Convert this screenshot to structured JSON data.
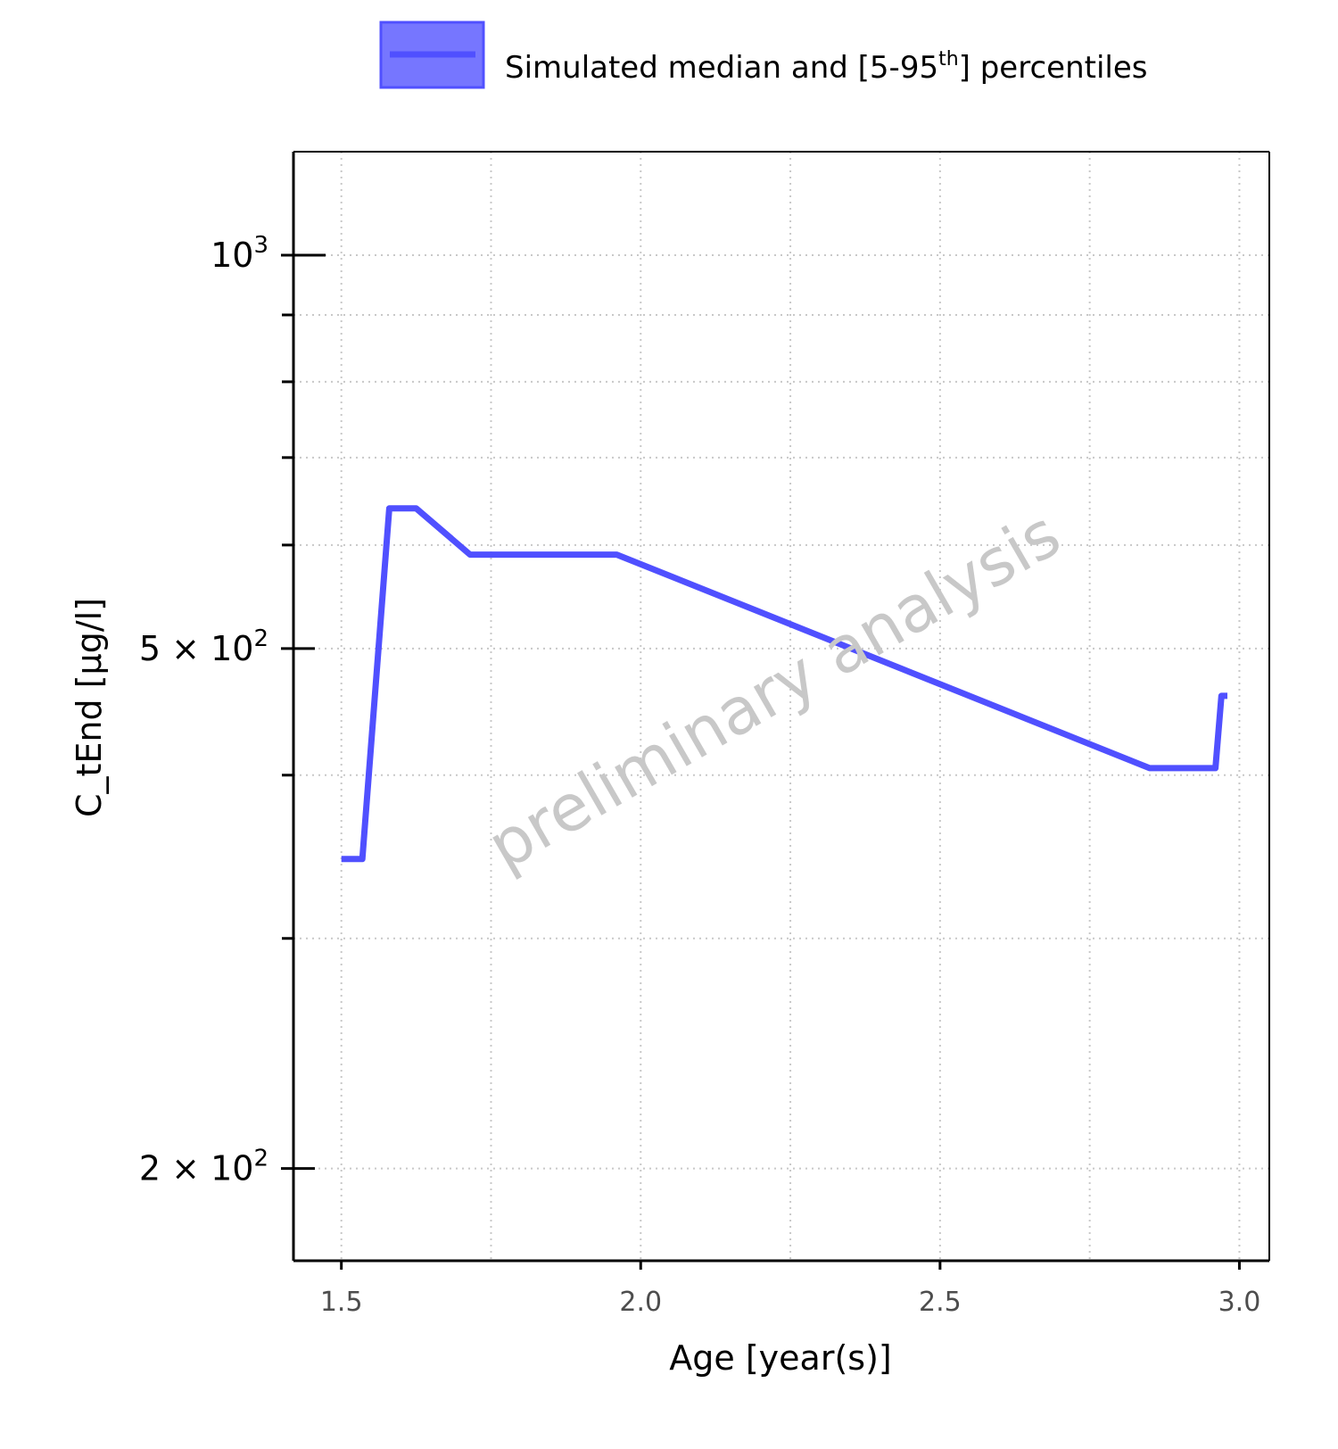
{
  "chart_data": {
    "type": "line",
    "legend": {
      "label_main": "Simulated median and [5-95",
      "label_sup": "th",
      "label_end": "] percentiles",
      "placement": "top"
    },
    "xlabel": "Age [year(s)]",
    "ylabel": "C_tEnd [µg/l]",
    "watermark": "preliminary analysis",
    "x_scale": "linear",
    "y_scale": "log",
    "xlim": [
      1.42,
      3.05
    ],
    "ylim": [
      170,
      1200
    ],
    "grid": true,
    "x_ticks": [
      {
        "value": 1.5,
        "label": "1.5"
      },
      {
        "value": 2.0,
        "label": "2.0"
      },
      {
        "value": 2.5,
        "label": "2.5"
      },
      {
        "value": 3.0,
        "label": "3.0"
      }
    ],
    "x_minor_grid": [
      1.75,
      2.25,
      2.75
    ],
    "y_ticks": [
      {
        "value": 200,
        "mantissa": "2",
        "times": "×",
        "base": "10",
        "exp": "2"
      },
      {
        "value": 500,
        "mantissa": "5",
        "times": "×",
        "base": "10",
        "exp": "2"
      },
      {
        "value": 1000,
        "mantissa": "",
        "times": "",
        "base": "10",
        "exp": "3"
      }
    ],
    "y_minor_ticks": [
      300,
      400,
      600,
      700,
      800,
      900
    ],
    "series": [
      {
        "name": "Simulated median and [5-95th] percentiles",
        "color": "#5050FF",
        "x": [
          1.5,
          1.535,
          1.58,
          1.625,
          1.715,
          1.96,
          2.85,
          2.96,
          2.97,
          2.98
        ],
        "y": [
          345,
          345,
          640,
          640,
          590,
          590,
          405,
          405,
          460,
          460
        ]
      }
    ]
  }
}
